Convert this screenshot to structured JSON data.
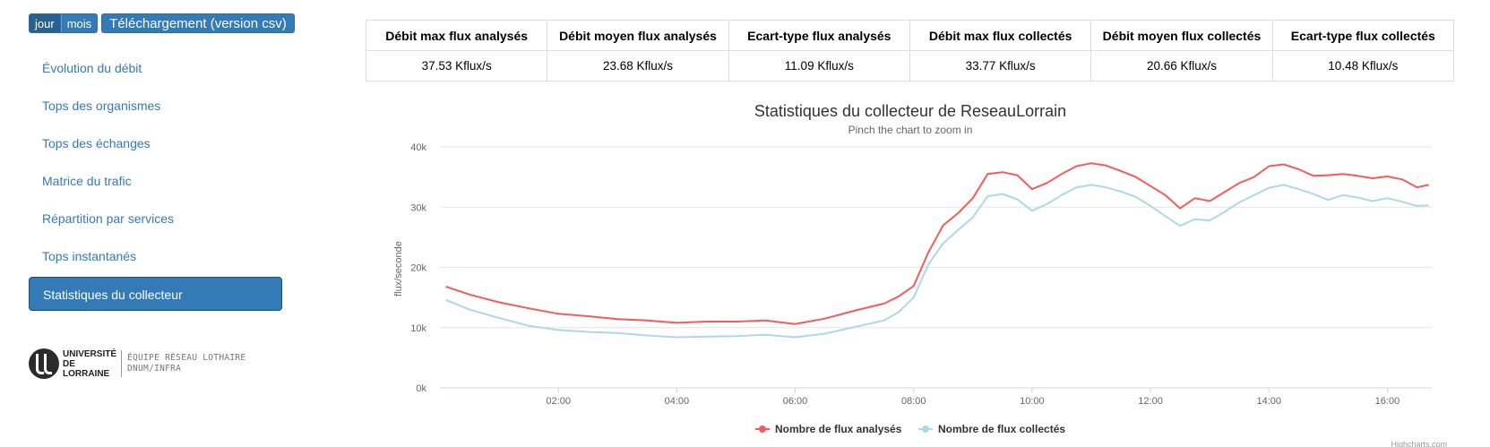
{
  "toolbar": {
    "day": "jour",
    "month": "mois",
    "download": "Téléchargement (version csv)"
  },
  "nav": {
    "items": [
      {
        "label": "Évolution du débit"
      },
      {
        "label": "Tops des organismes"
      },
      {
        "label": "Tops des échanges"
      },
      {
        "label": "Matrice du trafic"
      },
      {
        "label": "Répartition par services"
      },
      {
        "label": "Tops instantanés"
      },
      {
        "label": "Statistiques du collecteur",
        "active": true
      }
    ]
  },
  "logo": {
    "university_line1": "UNIVERSITÉ",
    "university_line2": "DE LORRAINE",
    "team_line1": "ÉQUIPE RÉSEAU LOTHAIRE",
    "team_line2": "DNUM/INFRA"
  },
  "stats": {
    "headers": [
      "Débit max flux analysés",
      "Débit moyen flux analysés",
      "Ecart-type flux analysés",
      "Débit max flux collectés",
      "Débit moyen flux collectés",
      "Ecart-type flux collectés"
    ],
    "values": [
      "37.53 Kflux/s",
      "23.68 Kflux/s",
      "11.09 Kflux/s",
      "33.77 Kflux/s",
      "20.66 Kflux/s",
      "10.48 Kflux/s"
    ]
  },
  "colors": {
    "analyses": "#f45b5b",
    "collectes": "#add8e6",
    "accent": "#337ab7"
  },
  "chart_data": {
    "type": "line",
    "title": "Statistiques du collecteur de ReseauLorrain",
    "subtitle": "Pinch the chart to zoom in",
    "ylabel": "flux/seconde",
    "xlabel": "",
    "ylim": [
      0,
      40000
    ],
    "xlim": [
      0.0,
      16.75
    ],
    "y_ticks": [
      0,
      10000,
      20000,
      30000,
      40000
    ],
    "y_tick_labels": [
      "0k",
      "10k",
      "20k",
      "30k",
      "40k"
    ],
    "x_ticks": [
      2,
      4,
      6,
      8,
      10,
      12,
      14,
      16
    ],
    "x_tick_labels": [
      "02:00",
      "04:00",
      "06:00",
      "08:00",
      "10:00",
      "12:00",
      "14:00",
      "16:00"
    ],
    "grid": true,
    "legend_position": "bottom-center",
    "credits": "Highcharts.com",
    "x": [
      0.1,
      0.5,
      1.0,
      1.5,
      2.0,
      2.5,
      3.0,
      3.5,
      4.0,
      4.5,
      5.0,
      5.5,
      6.0,
      6.5,
      7.0,
      7.5,
      7.75,
      8.0,
      8.25,
      8.5,
      8.75,
      9.0,
      9.25,
      9.5,
      9.75,
      10.0,
      10.25,
      10.5,
      10.75,
      11.0,
      11.25,
      11.5,
      11.75,
      12.0,
      12.25,
      12.5,
      12.75,
      13.0,
      13.25,
      13.5,
      13.75,
      14.0,
      14.25,
      14.5,
      14.75,
      15.0,
      15.25,
      15.5,
      15.75,
      16.0,
      16.25,
      16.5,
      16.7
    ],
    "series": [
      {
        "name": "Nombre de flux analysés",
        "values": [
          16800,
          15500,
          14200,
          13200,
          12300,
          11900,
          11400,
          11200,
          10800,
          11000,
          11000,
          11200,
          10600,
          11500,
          12800,
          14000,
          15200,
          16900,
          22500,
          27000,
          29000,
          31500,
          35500,
          35800,
          35300,
          33000,
          34000,
          35500,
          36800,
          37300,
          36900,
          36000,
          35000,
          33500,
          32000,
          29800,
          31500,
          31000,
          32500,
          34000,
          35000,
          36800,
          37100,
          36300,
          35200,
          35300,
          35500,
          35200,
          34800,
          35100,
          34600,
          33300,
          33700
        ]
      },
      {
        "name": "Nombre de flux collectés",
        "values": [
          14600,
          13000,
          11600,
          10300,
          9600,
          9300,
          9100,
          8700,
          8400,
          8500,
          8600,
          8800,
          8400,
          9000,
          10100,
          11200,
          12600,
          15000,
          20500,
          24000,
          26200,
          28300,
          31800,
          32200,
          31300,
          29400,
          30500,
          32000,
          33300,
          33700,
          33300,
          32600,
          31700,
          30200,
          28500,
          26900,
          28000,
          27800,
          29200,
          30800,
          32000,
          33200,
          33700,
          33000,
          32200,
          31200,
          32000,
          31600,
          31000,
          31500,
          30900,
          30200,
          30300
        ]
      }
    ]
  }
}
